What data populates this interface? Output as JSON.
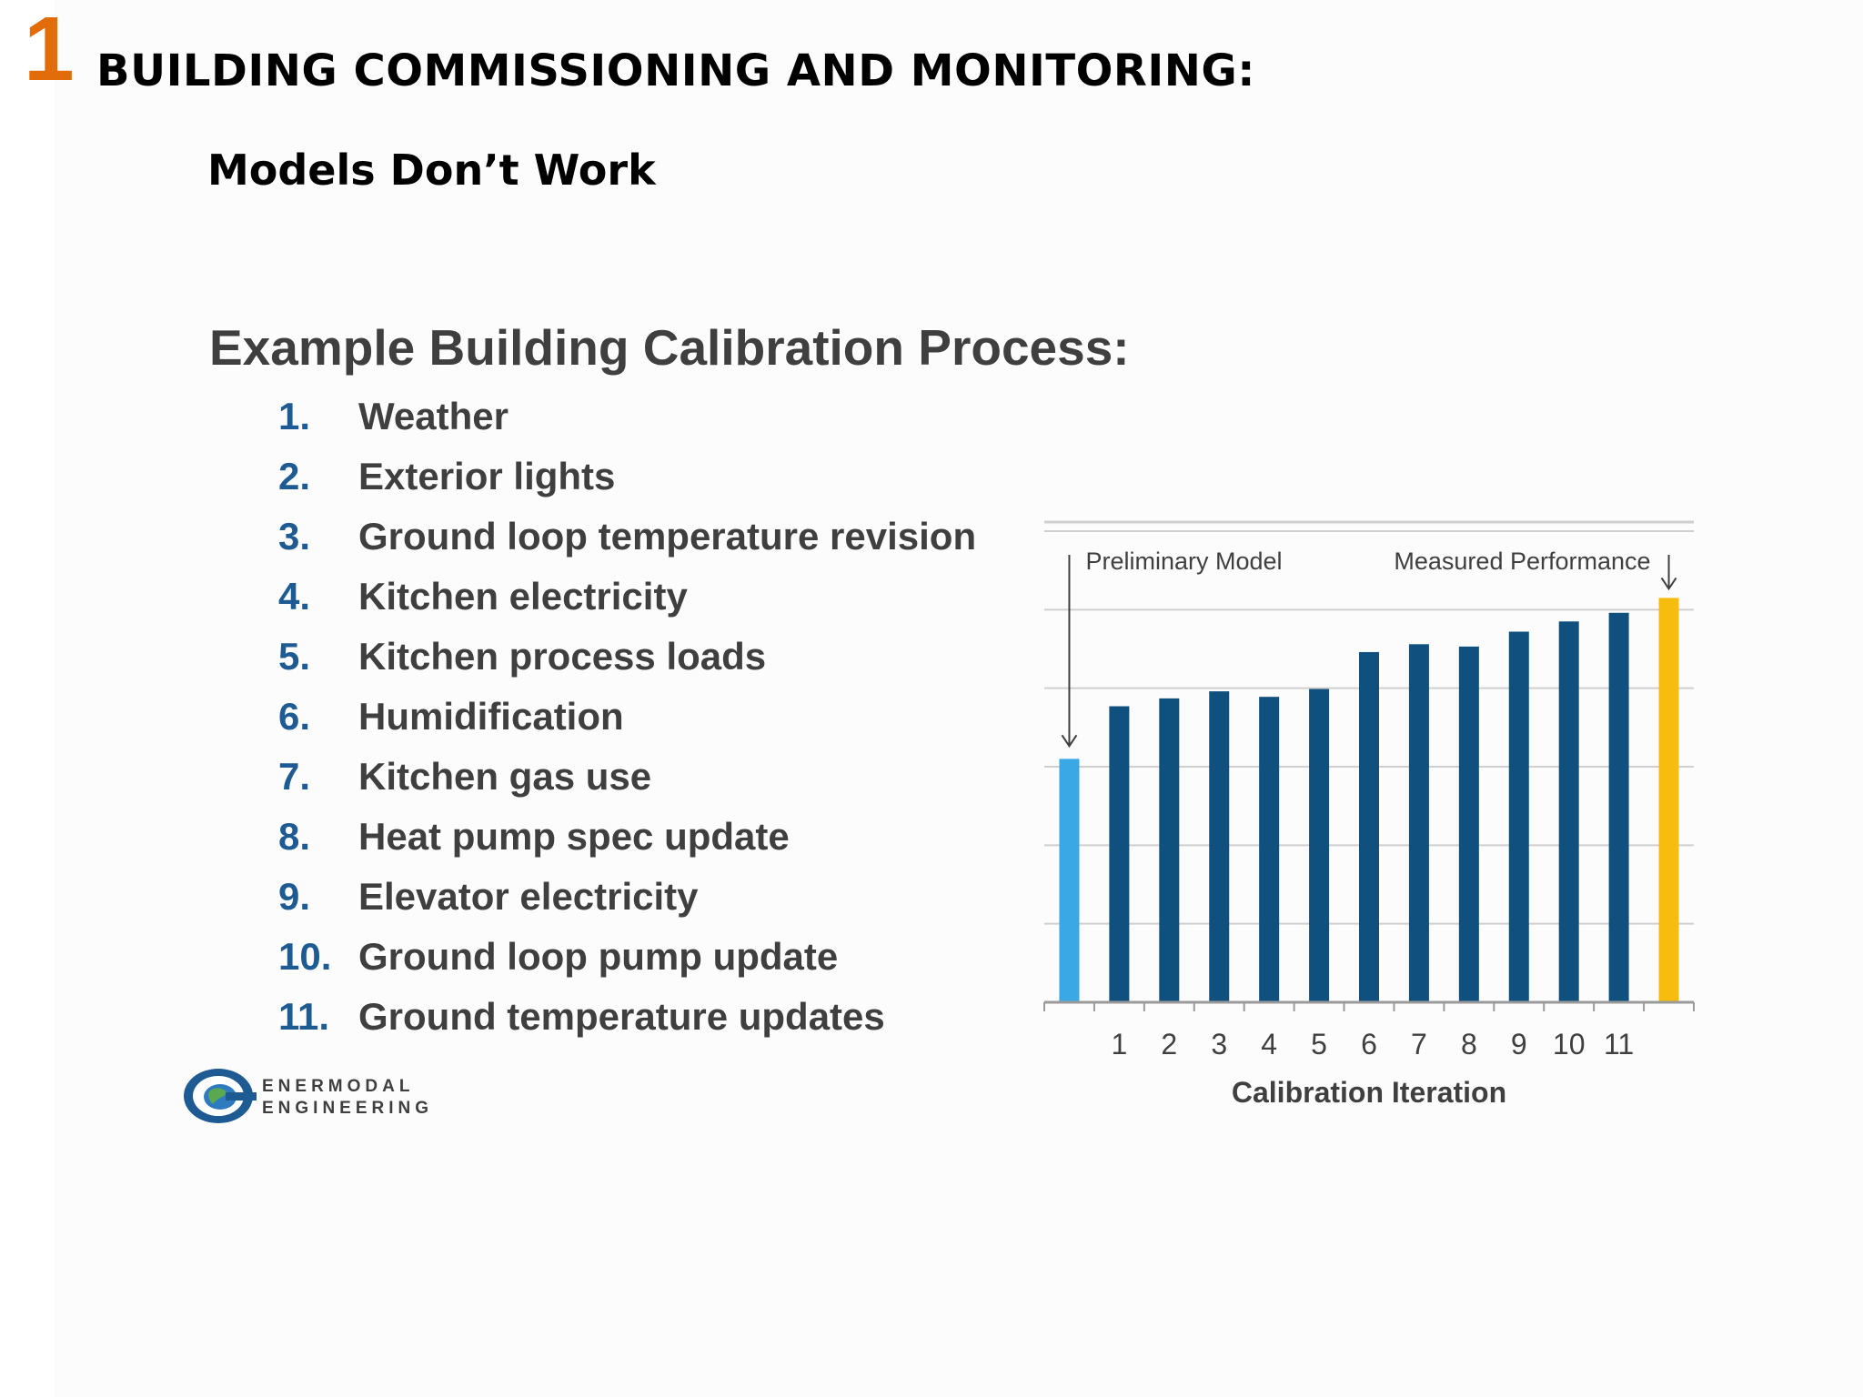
{
  "header": {
    "slide_number": "1",
    "title": "BUILDING COMMISSIONING AND MONITORING:",
    "subtitle": "Models Don’t Work"
  },
  "content": {
    "section_title": "Example Building Calibration Process:",
    "steps": [
      {
        "num": "1.",
        "label": "Weather"
      },
      {
        "num": "2.",
        "label": "Exterior lights"
      },
      {
        "num": "3.",
        "label": "Ground loop temperature revision"
      },
      {
        "num": "4.",
        "label": "Kitchen electricity"
      },
      {
        "num": "5.",
        "label": "Kitchen process loads"
      },
      {
        "num": "6.",
        "label": "Humidification"
      },
      {
        "num": "7.",
        "label": "Kitchen gas use"
      },
      {
        "num": "8.",
        "label": "Heat pump spec update"
      },
      {
        "num": "9.",
        "label": "Elevator electricity"
      },
      {
        "num": "10.",
        "label": "Ground loop pump update"
      },
      {
        "num": "11.",
        "label": "Ground temperature updates"
      }
    ]
  },
  "logo": {
    "line1": "ENERMODAL",
    "line2": "ENGINEERING"
  },
  "colors": {
    "accent_orange": "#e36c0a",
    "step_number_blue": "#1f5b93",
    "bar_dark_blue": "#10507f",
    "bar_light_blue": "#3aa8e4",
    "bar_yellow": "#f6bd0f"
  },
  "chart_data": {
    "type": "bar",
    "categories": [
      "",
      "1",
      "2",
      "3",
      "4",
      "5",
      "6",
      "7",
      "8",
      "9",
      "10",
      "11",
      ""
    ],
    "values": [
      31,
      37.7,
      38.7,
      39.6,
      38.9,
      39.9,
      44.6,
      45.6,
      45.3,
      47.2,
      48.5,
      49.6,
      51.5
    ],
    "bar_roles": [
      "preliminary",
      "iteration",
      "iteration",
      "iteration",
      "iteration",
      "iteration",
      "iteration",
      "iteration",
      "iteration",
      "iteration",
      "iteration",
      "iteration",
      "measured"
    ],
    "ylim": [
      0,
      60
    ],
    "grid": true,
    "xlabel": "Calibration Iteration",
    "ylabel": "",
    "title": "",
    "annotations": [
      "Preliminary Model",
      "Measured Performance"
    ]
  }
}
